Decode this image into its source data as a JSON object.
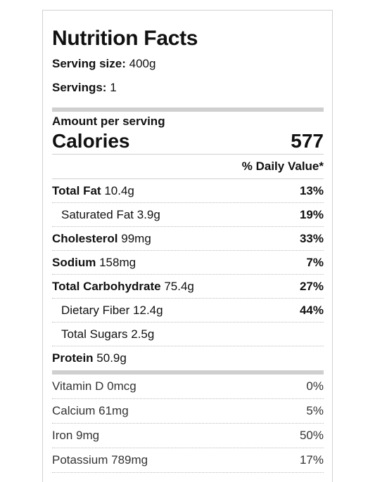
{
  "title": "Nutrition Facts",
  "serving_size": {
    "label": "Serving size:",
    "value": "400g"
  },
  "servings": {
    "label": "Servings:",
    "value": "1"
  },
  "amount_per_serving": "Amount per serving",
  "calories": {
    "label": "Calories",
    "value": "577"
  },
  "daily_value_header": "% Daily Value*",
  "nutrients": [
    {
      "name": "Total Fat",
      "amount": "10.4g",
      "dv": "13%"
    },
    {
      "name": "Saturated Fat",
      "amount": "3.9g",
      "dv": "19%"
    },
    {
      "name": "Cholesterol",
      "amount": "99mg",
      "dv": "33%"
    },
    {
      "name": "Sodium",
      "amount": "158mg",
      "dv": "7%"
    },
    {
      "name": "Total Carbohydrate",
      "amount": "75.4g",
      "dv": "27%"
    },
    {
      "name": "Dietary Fiber",
      "amount": "12.4g",
      "dv": "44%"
    },
    {
      "name": "Total Sugars",
      "amount": "2.5g",
      "dv": ""
    },
    {
      "name": "Protein",
      "amount": "50.9g",
      "dv": ""
    }
  ],
  "vitamins": [
    {
      "name": "Vitamin D",
      "amount": "0mcg",
      "dv": "0%"
    },
    {
      "name": "Calcium",
      "amount": "61mg",
      "dv": "5%"
    },
    {
      "name": "Iron",
      "amount": "9mg",
      "dv": "50%"
    },
    {
      "name": "Potassium",
      "amount": "789mg",
      "dv": "17%"
    }
  ]
}
